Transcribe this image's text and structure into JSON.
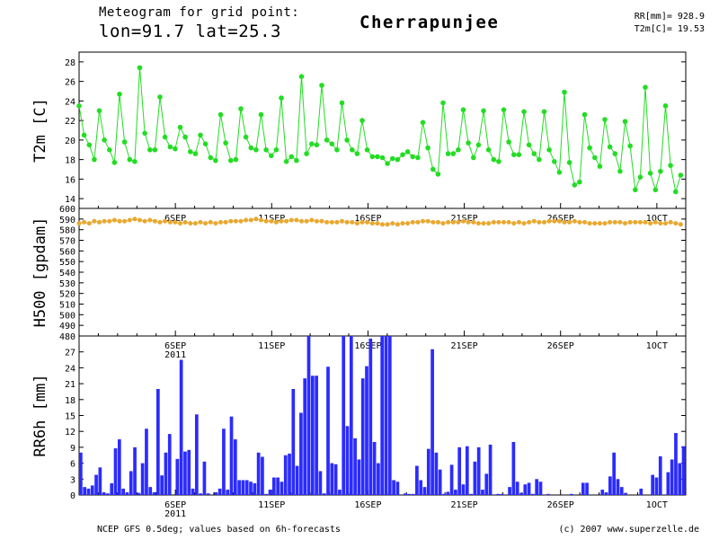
{
  "header": {
    "line1": "Meteogram for grid point:",
    "line2": "lon=91.7 lat=25.3",
    "station": "Cherrapunjee",
    "rr_label": "RR[mm]= 928.9",
    "t2m_label": "T2m[C]= 19.53"
  },
  "footer": {
    "source": "NCEP GFS 0.5deg; values based on 6h-forecasts",
    "credit": "(c) 2007 www.superzelle.de"
  },
  "colors": {
    "t2m": "#22dd22",
    "h500": "#e8a830",
    "rr6h": "#2b2bff",
    "axis": "#000000"
  },
  "chart_data": [
    {
      "type": "line",
      "ylabel": "T2m [C]",
      "ylim": [
        13,
        29
      ],
      "yticks": [
        14,
        16,
        18,
        20,
        22,
        24,
        26,
        28
      ],
      "xlim": [
        0,
        31.5
      ],
      "xticks": [
        {
          "day": 5,
          "label": "6SEP"
        },
        {
          "day": 10,
          "label": "11SEP"
        },
        {
          "day": 15,
          "label": "16SEP"
        },
        {
          "day": 20,
          "label": "21SEP"
        },
        {
          "day": 25,
          "label": "26SEP"
        },
        {
          "day": 30,
          "label": "1OCT"
        }
      ],
      "series": [
        {
          "values": [
            23.5,
            20.5,
            19.5,
            18,
            23,
            20,
            19,
            17.7,
            24.7,
            19.8,
            18,
            17.8,
            27.4,
            20.7,
            19,
            19,
            24.4,
            20.3,
            19.3,
            19.1,
            21.3,
            20.3,
            18.8,
            18.6,
            20.5,
            19.6,
            18.2,
            17.9,
            22.6,
            19.7,
            17.9,
            18,
            23.2,
            20.3,
            19.2,
            19,
            22.6,
            19,
            18.4,
            19,
            24.3,
            17.8,
            18.3,
            17.9,
            26.5,
            18.6,
            19.6,
            19.5,
            25.6,
            20,
            19.6,
            19,
            23.8,
            20,
            19,
            18.6,
            22,
            19,
            18.3,
            18.3,
            18.2,
            17.6,
            18.1,
            18,
            18.5,
            18.8,
            18.3,
            18.2,
            21.8,
            19.2,
            17,
            16.5,
            23.8,
            18.6,
            18.6,
            19,
            23.1,
            19.7,
            18.2,
            19.5,
            23,
            19,
            18,
            17.8,
            23.1,
            19.8,
            18.5,
            18.5,
            22.9,
            19.5,
            18.6,
            18,
            22.9,
            19,
            17.8,
            16.7,
            24.9,
            17.7,
            15.4,
            15.7,
            22.6,
            19.2,
            18.2,
            17.3,
            22.1,
            19.3,
            18.6,
            16.8,
            21.9,
            19.4,
            14.9,
            16.2,
            25.4,
            16.6,
            14.9,
            16.8,
            23.5,
            17.4,
            14.7,
            16.4
          ]
        }
      ]
    },
    {
      "type": "line",
      "ylabel": "H500 [gpdam]",
      "ylim": [
        480,
        600
      ],
      "yticks": [
        480,
        490,
        500,
        510,
        520,
        530,
        540,
        550,
        560,
        570,
        580,
        590,
        600
      ],
      "xlim": [
        0,
        31.5
      ],
      "xticks": [
        {
          "day": 5,
          "label": "6SEP"
        },
        {
          "day": 10,
          "label": "11SEP"
        },
        {
          "day": 15,
          "label": "16SEP"
        },
        {
          "day": 20,
          "label": "21SEP"
        },
        {
          "day": 25,
          "label": "26SEP"
        },
        {
          "day": 30,
          "label": "1OCT"
        }
      ],
      "extra_label": "2011",
      "series": [
        {
          "values": [
            586,
            587,
            586,
            588,
            587,
            588,
            588,
            589,
            588,
            588,
            589,
            590,
            589,
            588,
            589,
            588,
            587,
            588,
            587,
            587,
            586,
            587,
            586,
            586,
            587,
            586,
            587,
            586,
            587,
            587,
            588,
            588,
            588,
            589,
            589,
            590,
            589,
            588,
            588,
            587,
            588,
            588,
            589,
            589,
            588,
            588,
            589,
            588,
            588,
            587,
            587,
            587,
            588,
            587,
            587,
            586,
            587,
            587,
            586,
            586,
            585,
            585,
            586,
            585,
            586,
            586,
            587,
            587,
            588,
            588,
            587,
            587,
            586,
            587,
            587,
            587,
            588,
            587,
            587,
            586,
            586,
            586,
            587,
            587,
            587,
            587,
            586,
            587,
            586,
            587,
            588,
            587,
            587,
            588,
            588,
            588,
            587,
            587,
            588,
            587,
            587,
            586,
            586,
            586,
            586,
            587,
            587,
            587,
            586,
            587,
            587,
            587,
            587,
            586,
            587,
            586,
            586,
            587,
            586,
            585
          ]
        }
      ]
    },
    {
      "type": "bar",
      "ylabel": "RR6h [mm]",
      "ylim": [
        0,
        30
      ],
      "yticks": [
        0,
        3,
        6,
        9,
        12,
        15,
        18,
        21,
        24,
        27
      ],
      "xlim": [
        0,
        31.5
      ],
      "xticks": [
        {
          "day": 5,
          "label": "6SEP"
        },
        {
          "day": 10,
          "label": "11SEP"
        },
        {
          "day": 15,
          "label": "16SEP"
        },
        {
          "day": 20,
          "label": "21SEP"
        },
        {
          "day": 25,
          "label": "26SEP"
        },
        {
          "day": 30,
          "label": "1OCT"
        }
      ],
      "extra_label": "2011",
      "series": [
        {
          "values": [
            8,
            1.5,
            1.2,
            1.8,
            3.8,
            5.2,
            0.5,
            0.3,
            2.2,
            8.8,
            10.5,
            1.2,
            0.5,
            4.5,
            9,
            0.4,
            6,
            12.5,
            1.5,
            0.5,
            20,
            3.7,
            8,
            11.5,
            0,
            6.8,
            25.5,
            8.2,
            8.5,
            1.2,
            15.2,
            0.3,
            6.3,
            0.3,
            0,
            0.5,
            1.2,
            12.5,
            1,
            14.8,
            10.5,
            2.8,
            2.8,
            2.8,
            2.5,
            2.2,
            8,
            7.2,
            0.2,
            1,
            3.3,
            3.3,
            2.5,
            7.5,
            7.8,
            20,
            5.5,
            15.5,
            22,
            30,
            22.5,
            22.5,
            4.5,
            0.3,
            24.2,
            6,
            5.8,
            1,
            30,
            13,
            30,
            10.7,
            6.7,
            22,
            24.3,
            29.5,
            10,
            6,
            30,
            30,
            30,
            2.8,
            2.5,
            0,
            0.3,
            0.2,
            0.2,
            5.5,
            2.8,
            1.5,
            8.7,
            27.5,
            8,
            4.8,
            0.2,
            0.6,
            5.7,
            1,
            9,
            2,
            9.2,
            0.2,
            6.3,
            9,
            1,
            4,
            9.5,
            0,
            0.2,
            0.2,
            0,
            1.5,
            10,
            2.5,
            0.4,
            2,
            2.3,
            0.2,
            3,
            2.5,
            0,
            0.2,
            0,
            0,
            0,
            0,
            0,
            0.2,
            0,
            0,
            2.3,
            2.3,
            0,
            0,
            0,
            1,
            0.5,
            3.5,
            8,
            3,
            1.5,
            0.4,
            0,
            0,
            0,
            1.2,
            0,
            0,
            3.8,
            3.3,
            7.3,
            0,
            4.3,
            6.7,
            11.7,
            6,
            9.2
          ]
        }
      ]
    }
  ]
}
